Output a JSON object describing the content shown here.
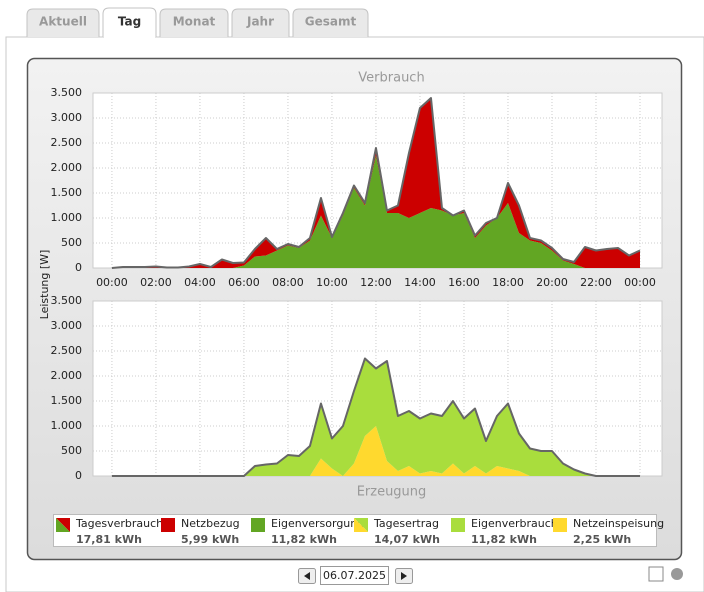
{
  "tabs": [
    "Aktuell",
    "Tag",
    "Monat",
    "Jahr",
    "Gesamt"
  ],
  "date": "06.07.2025",
  "chart_data": [
    {
      "type": "area",
      "title": "Verbrauch",
      "ylabel": "Leistung [W]",
      "x": [
        0,
        0.5,
        1,
        1.5,
        2,
        2.5,
        3,
        3.5,
        4,
        4.5,
        5,
        5.5,
        6,
        6.5,
        7,
        7.5,
        8,
        8.5,
        9,
        9.5,
        10,
        10.5,
        11,
        11.5,
        12,
        12.5,
        13,
        13.5,
        14,
        14.5,
        15,
        15.5,
        16,
        16.5,
        17,
        17.5,
        18,
        18.5,
        19,
        19.5,
        20,
        20.5,
        21,
        21.5,
        22,
        22.5,
        23,
        23.5,
        24
      ],
      "xlim": [
        -0.86,
        25
      ],
      "xticks": [
        {
          "value": 0,
          "label": "00:00"
        },
        {
          "value": 2,
          "label": "02:00"
        },
        {
          "value": 4,
          "label": "04:00"
        },
        {
          "value": 6,
          "label": "06:00"
        },
        {
          "value": 8,
          "label": "08:00"
        },
        {
          "value": 10,
          "label": "10:00"
        },
        {
          "value": 12,
          "label": "12:00"
        },
        {
          "value": 14,
          "label": "14:00"
        },
        {
          "value": 16,
          "label": "16:00"
        },
        {
          "value": 18,
          "label": "18:00"
        },
        {
          "value": 20,
          "label": "20:00"
        },
        {
          "value": 22,
          "label": "22:00"
        },
        {
          "value": 24,
          "label": "00:00"
        }
      ],
      "ylim": [
        0,
        3500
      ],
      "yticks": [
        0,
        {
          "value": 500,
          "label": "500"
        },
        {
          "value": 1000,
          "label": "1.000"
        },
        {
          "value": 1500,
          "label": "1.500"
        },
        {
          "value": 2000,
          "label": "2.000"
        },
        {
          "value": 2500,
          "label": "2.500"
        },
        {
          "value": 3000,
          "label": "3.000"
        },
        {
          "value": 3500,
          "label": "3.500"
        }
      ],
      "grid": true,
      "series": [
        {
          "name": "Tagesverbrauch",
          "type": "line",
          "color": "#666666",
          "total": "17,81 kWh",
          "values": [
            0,
            20,
            20,
            20,
            30,
            10,
            10,
            30,
            80,
            20,
            170,
            100,
            110,
            380,
            600,
            380,
            480,
            420,
            600,
            1400,
            620,
            1100,
            1650,
            1300,
            2400,
            1150,
            1250,
            2300,
            3200,
            3400,
            1200,
            1050,
            1150,
            650,
            900,
            1000,
            1700,
            1250,
            600,
            550,
            400,
            180,
            120,
            420,
            350,
            380,
            400,
            250,
            350
          ]
        },
        {
          "name": "Netzbezug",
          "type": "area",
          "color": "#cc0000",
          "total": "5,99 kWh",
          "values": [
            0,
            20,
            20,
            20,
            30,
            10,
            10,
            30,
            80,
            20,
            170,
            100,
            60,
            150,
            350,
            30,
            30,
            20,
            50,
            350,
            20,
            50,
            50,
            50,
            150,
            50,
            150,
            1300,
            2100,
            2200,
            50,
            0,
            50,
            50,
            50,
            0,
            400,
            550,
            50,
            50,
            50,
            30,
            40,
            420,
            350,
            380,
            400,
            250,
            350
          ]
        },
        {
          "name": "Eigenversorgung",
          "type": "area",
          "color": "#62a623",
          "total": "11,82 kWh",
          "values": [
            0,
            0,
            0,
            0,
            0,
            0,
            0,
            0,
            0,
            0,
            0,
            0,
            50,
            230,
            250,
            350,
            450,
            400,
            550,
            1050,
            600,
            1050,
            1600,
            1250,
            2250,
            1100,
            1100,
            1000,
            1100,
            1200,
            1150,
            1050,
            1100,
            600,
            850,
            1000,
            1300,
            700,
            550,
            500,
            350,
            150,
            80,
            0,
            0,
            0,
            0,
            0,
            0
          ]
        }
      ]
    },
    {
      "type": "area",
      "title": "Erzeugung",
      "x": [
        0,
        0.5,
        1,
        1.5,
        2,
        2.5,
        3,
        3.5,
        4,
        4.5,
        5,
        5.5,
        6,
        6.5,
        7,
        7.5,
        8,
        8.5,
        9,
        9.5,
        10,
        10.5,
        11,
        11.5,
        12,
        12.5,
        13,
        13.5,
        14,
        14.5,
        15,
        15.5,
        16,
        16.5,
        17,
        17.5,
        18,
        18.5,
        19,
        19.5,
        20,
        20.5,
        21,
        21.5,
        22,
        22.5,
        23,
        23.5,
        24
      ],
      "xlim": [
        -0.86,
        25
      ],
      "ylim": [
        0,
        3500
      ],
      "yticks": [
        0,
        {
          "value": 500,
          "label": "500"
        },
        {
          "value": 1000,
          "label": "1.000"
        },
        {
          "value": 1500,
          "label": "1.500"
        },
        {
          "value": 2000,
          "label": "2.000"
        },
        {
          "value": 2500,
          "label": "2.500"
        },
        {
          "value": 3000,
          "label": "3.000"
        },
        {
          "value": 3500,
          "label": "3.500"
        }
      ],
      "grid": true,
      "series": [
        {
          "name": "Tagesertrag",
          "type": "line",
          "color": "#666666",
          "total": "14,07 kWh",
          "values": [
            0,
            0,
            0,
            0,
            0,
            0,
            0,
            0,
            0,
            0,
            0,
            0,
            0,
            200,
            230,
            250,
            420,
            400,
            600,
            1450,
            750,
            1000,
            1700,
            2350,
            2150,
            2300,
            1200,
            1300,
            1150,
            1250,
            1200,
            1500,
            1150,
            1350,
            700,
            1200,
            1450,
            850,
            550,
            500,
            500,
            250,
            130,
            50,
            0,
            0,
            0,
            0,
            0
          ]
        },
        {
          "name": "Eigenverbrauch",
          "type": "area",
          "color": "#a9dd3d",
          "total": "11,82 kWh",
          "values": [
            0,
            0,
            0,
            0,
            0,
            0,
            0,
            0,
            0,
            0,
            0,
            0,
            0,
            200,
            230,
            250,
            420,
            400,
            600,
            1100,
            600,
            1000,
            1450,
            1550,
            1150,
            2000,
            1100,
            1100,
            1100,
            1150,
            1150,
            1250,
            1100,
            1150,
            650,
            1000,
            1300,
            750,
            550,
            500,
            500,
            250,
            130,
            50,
            0,
            0,
            0,
            0,
            0
          ]
        },
        {
          "name": "Netzeinspeisung",
          "type": "area",
          "color": "#ffd92e",
          "total": "2,25 kWh",
          "values": [
            0,
            0,
            0,
            0,
            0,
            0,
            0,
            0,
            0,
            0,
            0,
            0,
            0,
            0,
            0,
            0,
            0,
            0,
            0,
            350,
            150,
            0,
            250,
            800,
            1000,
            300,
            100,
            200,
            50,
            100,
            50,
            250,
            50,
            200,
            50,
            200,
            150,
            100,
            0,
            0,
            0,
            0,
            0,
            0,
            0,
            0,
            0,
            0,
            0
          ]
        }
      ]
    }
  ]
}
